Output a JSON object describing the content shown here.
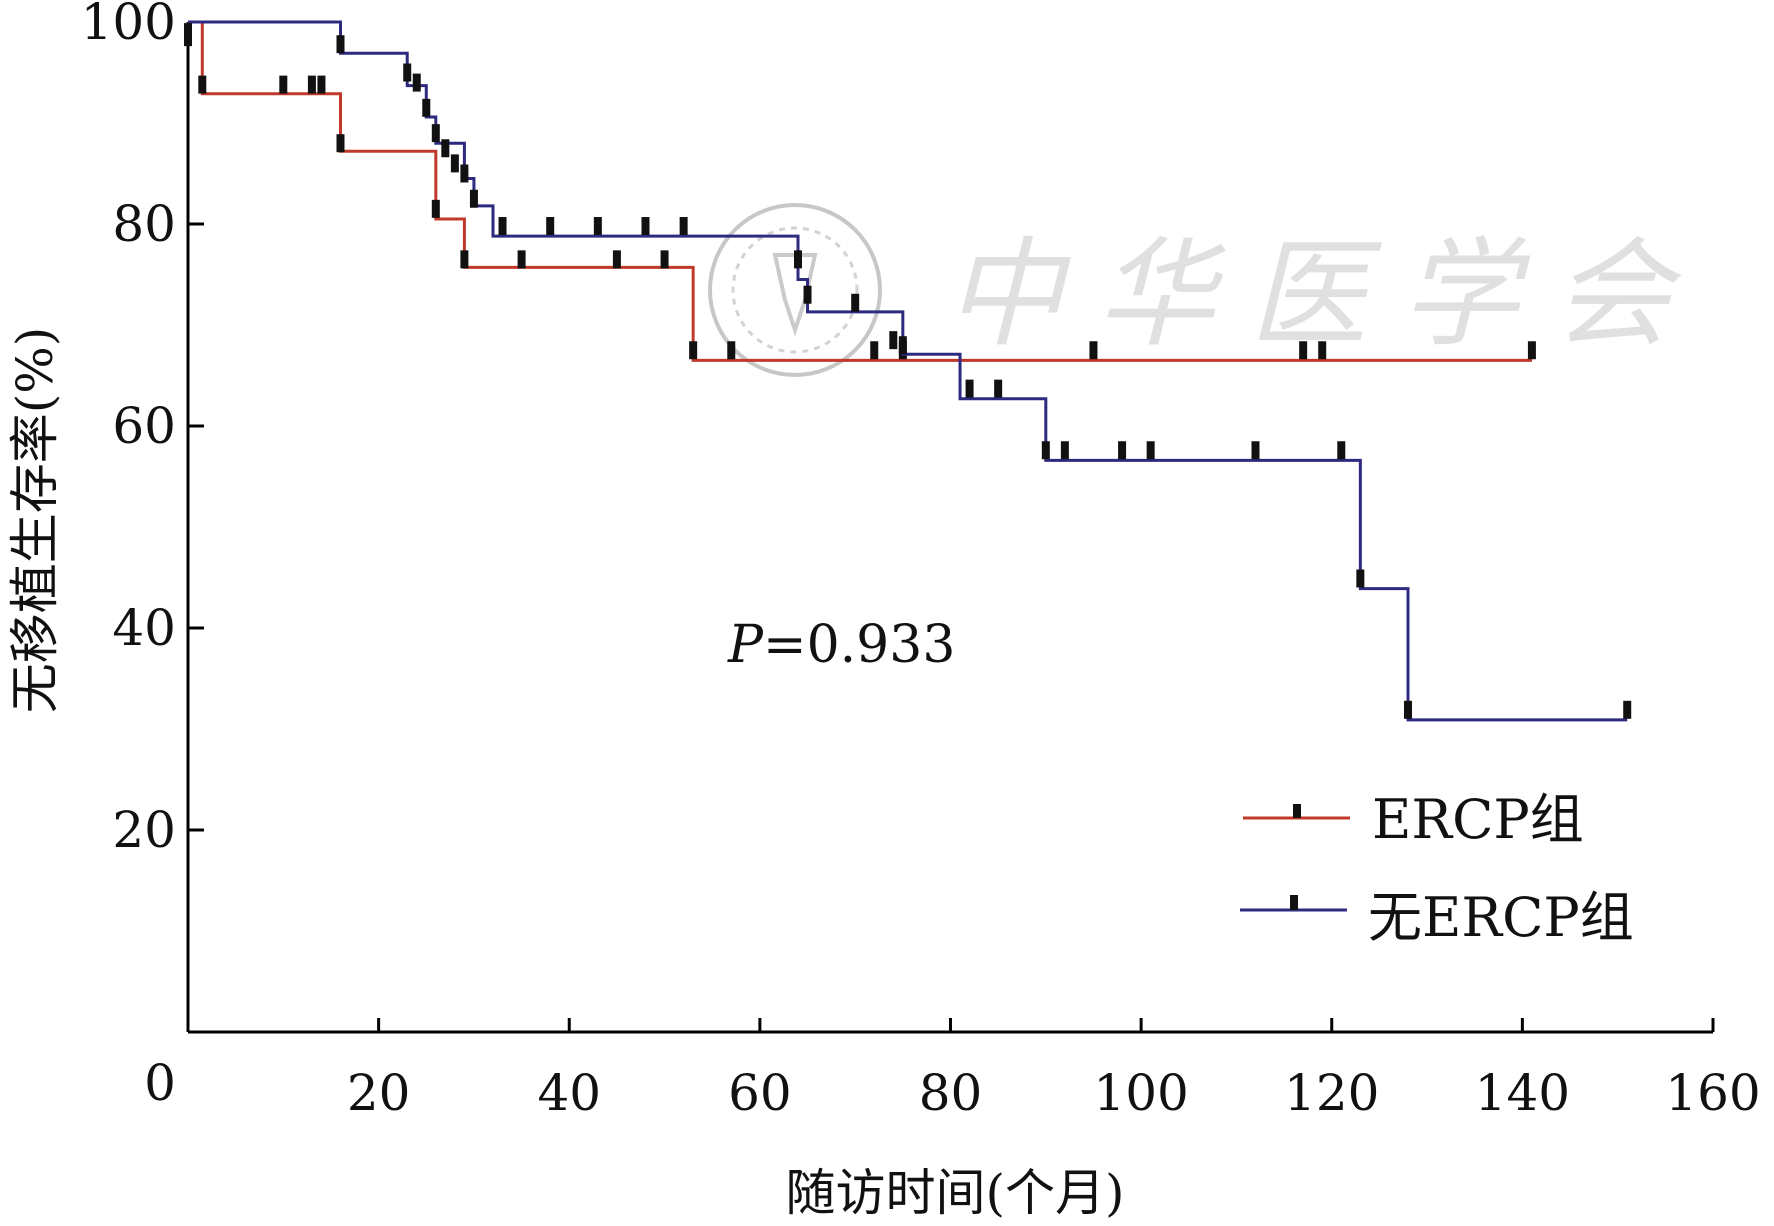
{
  "chart_data": {
    "type": "line",
    "subtype": "kaplan-meier",
    "title": "",
    "xlabel": "随访时间(个月)",
    "ylabel": "无移植生存率(%)",
    "xlim": [
      0,
      160
    ],
    "ylim": [
      0,
      100
    ],
    "origin_label": "0",
    "x_ticks": [
      20,
      40,
      60,
      80,
      100,
      120,
      140,
      160
    ],
    "x_tick_labels": [
      "20",
      "40",
      "60",
      "80",
      "100",
      "120",
      "140",
      "160"
    ],
    "y_ticks": [
      20,
      40,
      60,
      80,
      100
    ],
    "y_tick_labels": [
      "20",
      "40",
      "60",
      "80",
      "100"
    ],
    "grid": false,
    "legend_position": "bottom-right",
    "annotation": {
      "italic": "P",
      "rest": "=0.933"
    },
    "watermark": "中华医学会",
    "series": [
      {
        "name": "ERCP组",
        "color": "#c0392b",
        "steps": [
          [
            0,
            100
          ],
          [
            1.5,
            92.9
          ],
          [
            16,
            87.2
          ],
          [
            26,
            80.5
          ],
          [
            29,
            75.7
          ],
          [
            53,
            66.5
          ],
          [
            141,
            66.5
          ]
        ],
        "censors": [
          [
            0,
            98.5
          ],
          [
            1.5,
            93.8
          ],
          [
            10,
            93.8
          ],
          [
            13,
            93.8
          ],
          [
            14,
            93.8
          ],
          [
            16,
            88.0
          ],
          [
            26,
            81.5
          ],
          [
            29,
            76.5
          ],
          [
            35,
            76.5
          ],
          [
            45,
            76.5
          ],
          [
            50,
            76.5
          ],
          [
            53,
            67.5
          ],
          [
            57,
            67.5
          ],
          [
            72,
            67.5
          ],
          [
            75,
            67.5
          ],
          [
            95,
            67.5
          ],
          [
            117,
            67.5
          ],
          [
            119,
            67.5
          ],
          [
            141,
            67.5
          ]
        ]
      },
      {
        "name": "无ERCP组",
        "color": "#2e2a80",
        "steps": [
          [
            0,
            100
          ],
          [
            16,
            96.9
          ],
          [
            23,
            93.7
          ],
          [
            25,
            90.6
          ],
          [
            26,
            88.0
          ],
          [
            29,
            84.5
          ],
          [
            30,
            81.8
          ],
          [
            32,
            78.8
          ],
          [
            64,
            74.5
          ],
          [
            65,
            71.3
          ],
          [
            75,
            67.1
          ],
          [
            81,
            62.7
          ],
          [
            90,
            56.6
          ],
          [
            123,
            43.9
          ],
          [
            128,
            30.9
          ],
          [
            151,
            30.9
          ]
        ],
        "censors": [
          [
            0,
            99.0
          ],
          [
            16,
            97.8
          ],
          [
            23,
            95.0
          ],
          [
            24,
            94.0
          ],
          [
            25,
            91.5
          ],
          [
            26,
            89.0
          ],
          [
            27,
            87.5
          ],
          [
            28,
            86.0
          ],
          [
            29,
            85.0
          ],
          [
            30,
            82.5
          ],
          [
            33,
            79.8
          ],
          [
            38,
            79.8
          ],
          [
            43,
            79.8
          ],
          [
            48,
            79.8
          ],
          [
            52,
            79.8
          ],
          [
            64,
            76.5
          ],
          [
            65,
            73.0
          ],
          [
            70,
            72.2
          ],
          [
            74,
            68.5
          ],
          [
            75,
            68.0
          ],
          [
            82,
            63.7
          ],
          [
            85,
            63.7
          ],
          [
            90,
            57.6
          ],
          [
            92,
            57.6
          ],
          [
            98,
            57.6
          ],
          [
            101,
            57.6
          ],
          [
            112,
            57.6
          ],
          [
            121,
            57.6
          ],
          [
            123,
            44.9
          ],
          [
            128,
            31.9
          ],
          [
            151,
            31.9
          ]
        ]
      }
    ]
  }
}
